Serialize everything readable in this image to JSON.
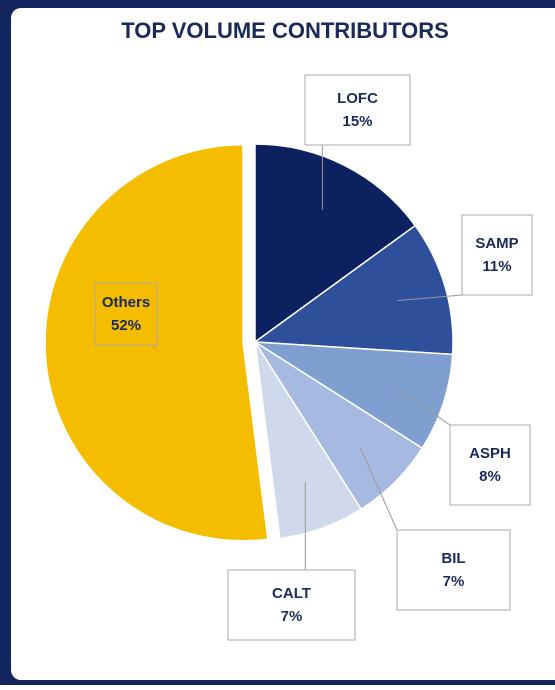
{
  "chart_data": {
    "type": "pie",
    "title": "TOP VOLUME CONTRIBUTORS",
    "categories": [
      "LOFC",
      "SAMP",
      "ASPH",
      "BIL",
      "CALT",
      "Others"
    ],
    "values": [
      15,
      11,
      8,
      7,
      7,
      52
    ],
    "value_labels": [
      "15%",
      "11%",
      "8%",
      "7%",
      "7%",
      "52%"
    ],
    "colors": [
      "#0d2160",
      "#2e4f99",
      "#7f9fd1",
      "#a6b9e0",
      "#d0d9ec",
      "#f5bd00"
    ]
  }
}
